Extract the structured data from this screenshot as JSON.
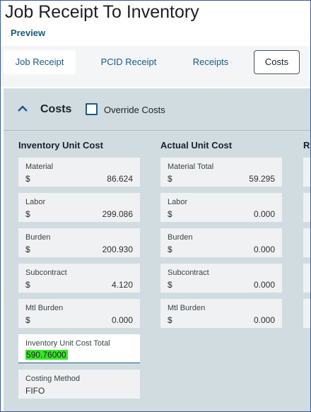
{
  "header": {
    "title": "Job Receipt To Inventory",
    "subtitle": "Preview"
  },
  "tabs": [
    {
      "label": "Job Receipt",
      "active": true
    },
    {
      "label": "PCID Receipt"
    },
    {
      "label": "Receipts"
    },
    {
      "label": "Costs"
    }
  ],
  "section": {
    "title": "Costs",
    "override_label": "Override Costs",
    "override_checked": false
  },
  "inventory_unit_cost": {
    "heading": "Inventory Unit Cost",
    "fields": [
      {
        "label": "Material",
        "currency": "$",
        "value": "86.624"
      },
      {
        "label": "Labor",
        "currency": "$",
        "value": "299.086"
      },
      {
        "label": "Burden",
        "currency": "$",
        "value": "200.930"
      },
      {
        "label": "Subcontract",
        "currency": "$",
        "value": "4.120"
      },
      {
        "label": "Mtl Burden",
        "currency": "$",
        "value": "0.000"
      }
    ],
    "total": {
      "label": "Inventory Unit Cost Total",
      "value": "590.76000"
    },
    "costing_method": {
      "label": "Costing Method",
      "value": "FIFO"
    }
  },
  "actual_unit_cost": {
    "heading": "Actual Unit Cost",
    "fields": [
      {
        "label": "Material Total",
        "currency": "$",
        "value": "59.295"
      },
      {
        "label": "Labor",
        "currency": "$",
        "value": "0.000"
      },
      {
        "label": "Burden",
        "currency": "$",
        "value": "0.000"
      },
      {
        "label": "Subcontract",
        "currency": "$",
        "value": "0.000"
      },
      {
        "label": "Mtl Burden",
        "currency": "$",
        "value": "0.000"
      }
    ]
  },
  "third_column": {
    "heading": "Re"
  },
  "colors": {
    "accent": "#1d5a82",
    "panel": "#d1dce1",
    "highlight": "#39e62a"
  }
}
